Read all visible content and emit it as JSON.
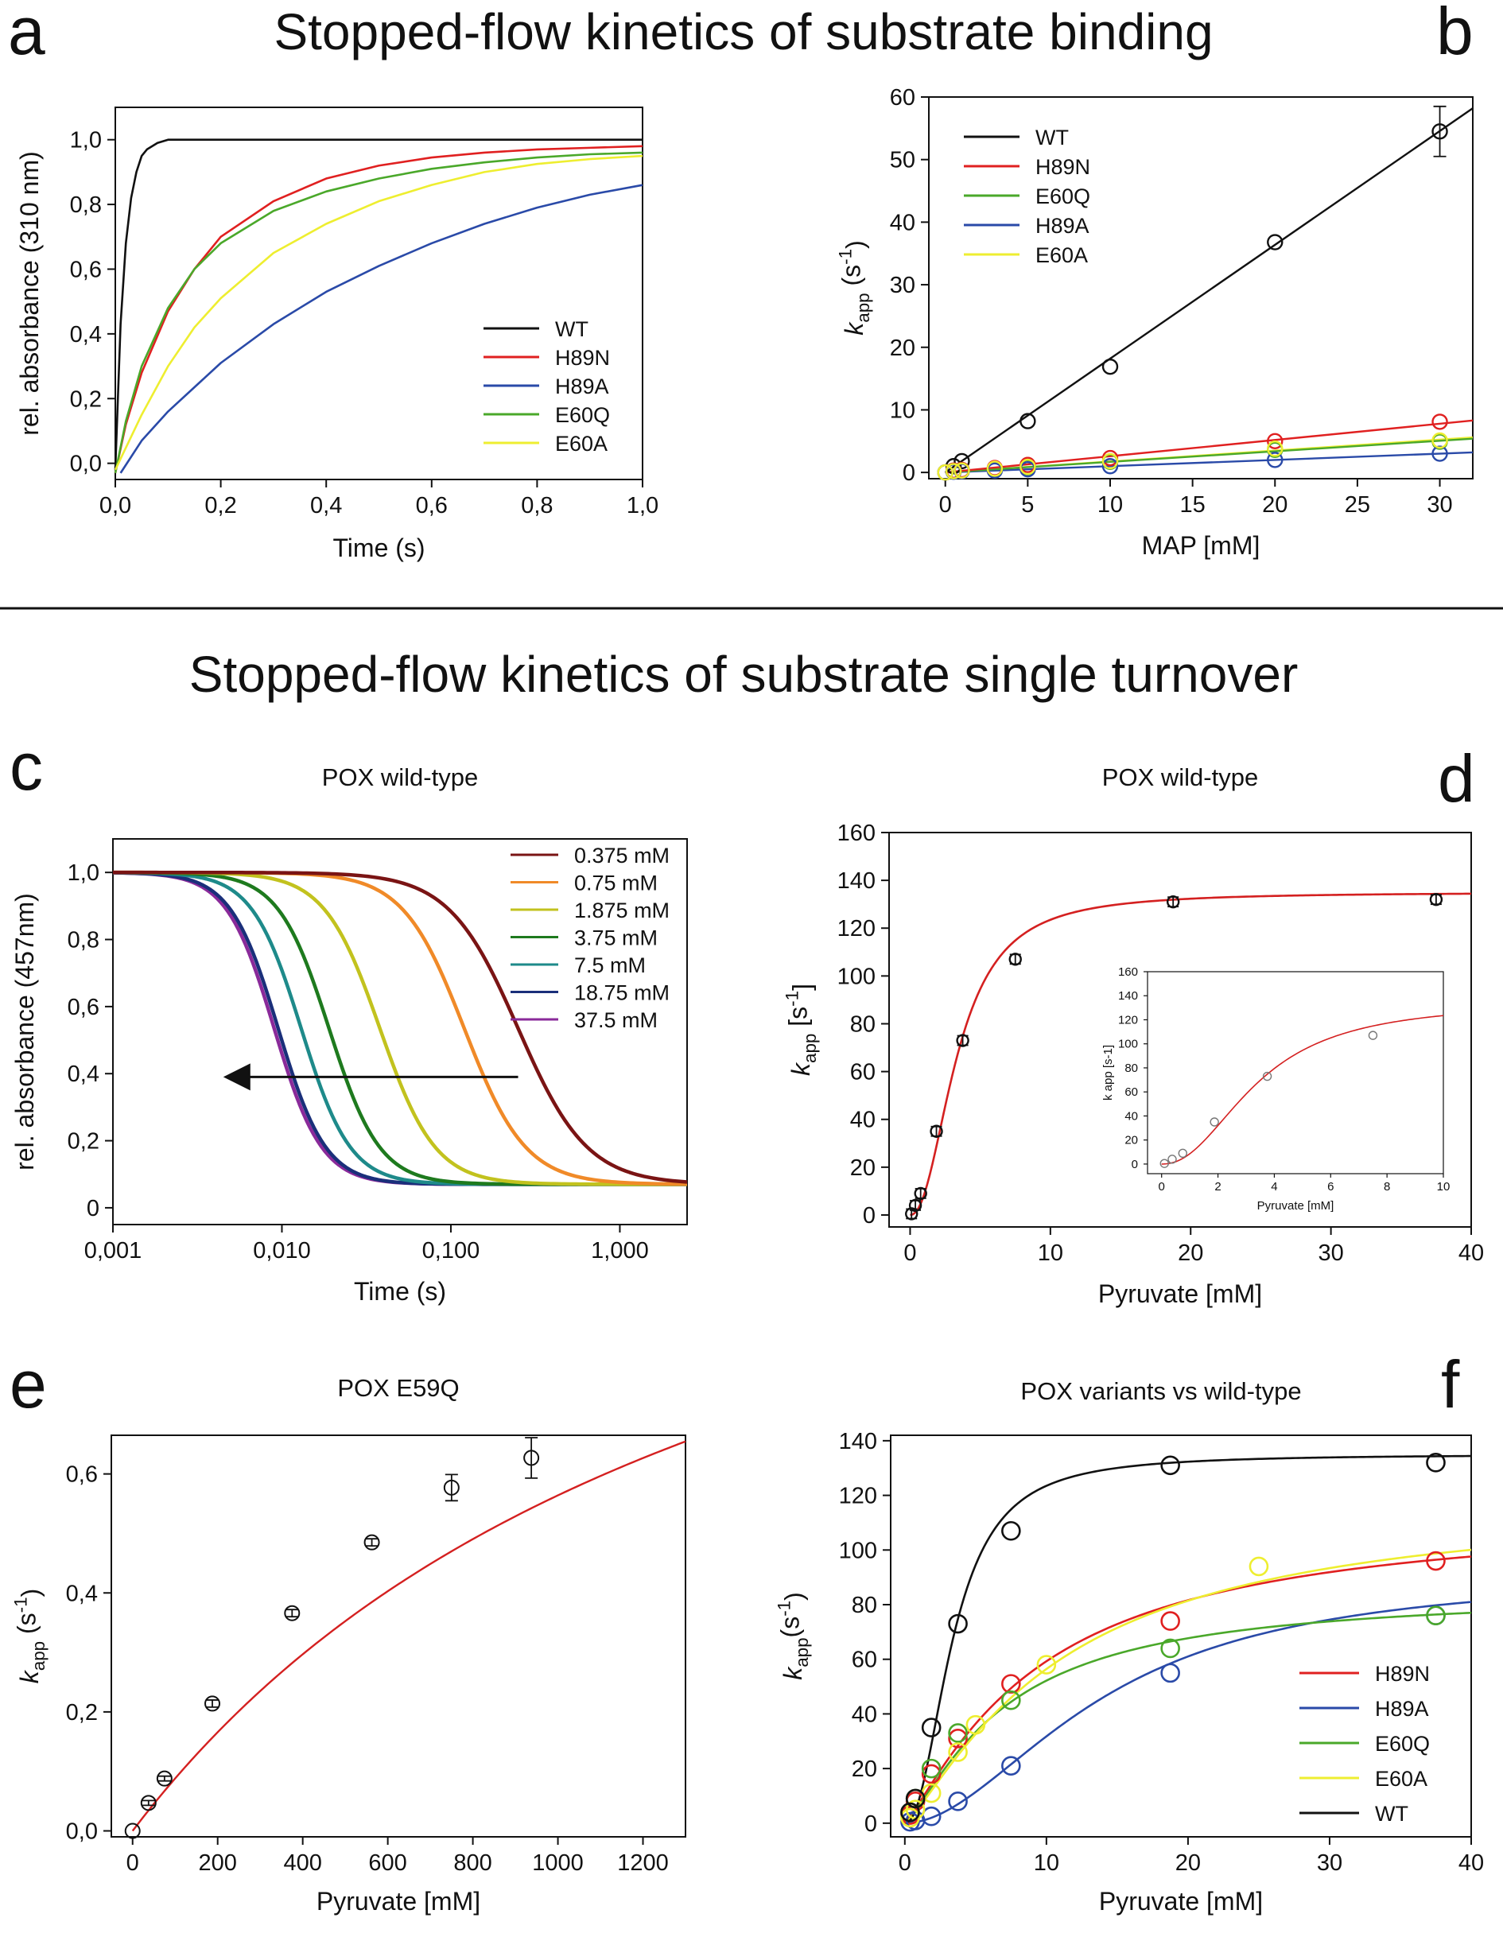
{
  "figure": {
    "section1_title": "Stopped-flow kinetics of substrate binding",
    "section2_title": "Stopped-flow kinetics of substrate single turnover",
    "panel_letters": {
      "a": "a",
      "b": "b",
      "c": "c",
      "d": "d",
      "e": "e",
      "f": "f"
    }
  },
  "chart_data": [
    {
      "panel": "a",
      "type": "line",
      "title": "",
      "xlabel": "Time (s)",
      "ylabel": "rel. absorbance (310 nm)",
      "xlim": [
        0,
        1
      ],
      "ylim": [
        -0.05,
        1.1
      ],
      "xticks": [
        0,
        0.2,
        0.4,
        0.6,
        0.8,
        1.0
      ],
      "xtick_labels": [
        "0,0",
        "0,2",
        "0,4",
        "0,6",
        "0,8",
        "1,0"
      ],
      "yticks": [
        0,
        0.2,
        0.4,
        0.6,
        0.8,
        1.0
      ],
      "ytick_labels": [
        "0,0",
        "0,2",
        "0,4",
        "0,6",
        "0,8",
        "1,0"
      ],
      "legend_position": "bottom-right",
      "series": [
        {
          "name": "WT",
          "color": "#111111",
          "x": [
            0,
            0.01,
            0.02,
            0.03,
            0.04,
            0.05,
            0.06,
            0.08,
            0.1,
            0.15,
            0.2,
            0.4,
            0.6,
            0.8,
            1.0
          ],
          "y": [
            -0.02,
            0.43,
            0.68,
            0.82,
            0.9,
            0.95,
            0.97,
            0.99,
            1.0,
            1.0,
            1.0,
            1.0,
            1.0,
            1.0,
            1.0
          ]
        },
        {
          "name": "H89N",
          "color": "#e02020",
          "x": [
            0,
            0.02,
            0.05,
            0.1,
            0.15,
            0.2,
            0.3,
            0.4,
            0.5,
            0.6,
            0.7,
            0.8,
            0.9,
            1.0
          ],
          "y": [
            -0.03,
            0.12,
            0.28,
            0.47,
            0.6,
            0.7,
            0.81,
            0.88,
            0.92,
            0.945,
            0.96,
            0.97,
            0.975,
            0.98
          ]
        },
        {
          "name": "H89A",
          "color": "#2a4aa8",
          "x": [
            0.01,
            0.05,
            0.1,
            0.2,
            0.3,
            0.4,
            0.5,
            0.6,
            0.7,
            0.8,
            0.9,
            1.0
          ],
          "y": [
            -0.03,
            0.07,
            0.16,
            0.31,
            0.43,
            0.53,
            0.61,
            0.68,
            0.74,
            0.79,
            0.83,
            0.86
          ]
        },
        {
          "name": "E60Q",
          "color": "#4aa82a",
          "x": [
            0,
            0.02,
            0.05,
            0.1,
            0.15,
            0.2,
            0.3,
            0.4,
            0.5,
            0.6,
            0.7,
            0.8,
            0.9,
            1.0
          ],
          "y": [
            -0.03,
            0.13,
            0.3,
            0.48,
            0.6,
            0.68,
            0.78,
            0.84,
            0.88,
            0.91,
            0.93,
            0.945,
            0.955,
            0.96
          ]
        },
        {
          "name": "E60A",
          "color": "#eeee30",
          "x": [
            0,
            0.05,
            0.1,
            0.15,
            0.2,
            0.3,
            0.4,
            0.5,
            0.6,
            0.7,
            0.8,
            0.9,
            1.0
          ],
          "y": [
            -0.02,
            0.15,
            0.3,
            0.42,
            0.51,
            0.65,
            0.74,
            0.81,
            0.86,
            0.9,
            0.925,
            0.94,
            0.95
          ]
        }
      ]
    },
    {
      "panel": "b",
      "type": "scatter",
      "title": "",
      "xlabel": "MAP [mM]",
      "ylabel_main": "k",
      "ylabel_sub": "app",
      "ylabel_unit_open": " (s",
      "ylabel_sup": "-1",
      "ylabel_unit_close": ")",
      "xlim": [
        -1,
        32
      ],
      "ylim": [
        -1,
        60
      ],
      "xticks": [
        0,
        5,
        10,
        15,
        20,
        25,
        30
      ],
      "xtick_labels": [
        "0",
        "5",
        "10",
        "15",
        "20",
        "25",
        "30"
      ],
      "yticks": [
        0,
        10,
        20,
        30,
        40,
        50,
        60
      ],
      "ytick_labels": [
        "0",
        "10",
        "20",
        "30",
        "40",
        "50",
        "60"
      ],
      "legend_position": "top-left",
      "series": [
        {
          "name": "WT",
          "color": "#111111",
          "x": [
            0.5,
            1,
            5,
            10,
            20,
            30
          ],
          "y": [
            1,
            1.8,
            8.2,
            16.9,
            36.8,
            54.5
          ],
          "err": [
            0,
            0,
            0,
            0,
            0,
            4
          ],
          "fit_x": [
            0,
            32
          ],
          "fit_y": [
            0,
            58.2
          ]
        },
        {
          "name": "H89N",
          "color": "#e02020",
          "x": [
            0,
            0.5,
            1,
            3,
            5,
            10,
            20,
            30
          ],
          "y": [
            0,
            0.3,
            0.4,
            0.7,
            1.2,
            2.3,
            5.0,
            8.1
          ],
          "err": [
            0,
            0,
            0,
            0,
            0,
            0,
            0,
            0
          ],
          "fit_x": [
            0,
            32
          ],
          "fit_y": [
            0,
            8.3
          ]
        },
        {
          "name": "E60Q",
          "color": "#4aa82a",
          "x": [
            0,
            0.5,
            1,
            3,
            5,
            10,
            20,
            30
          ],
          "y": [
            0,
            0.2,
            0.3,
            0.5,
            0.8,
            1.7,
            3.6,
            4.9
          ],
          "err": [
            0,
            0,
            0,
            0,
            0,
            0,
            0,
            0
          ],
          "fit_x": [
            0,
            32
          ],
          "fit_y": [
            0,
            5.4
          ]
        },
        {
          "name": "H89A",
          "color": "#2a4aa8",
          "x": [
            0,
            0.5,
            1,
            3,
            5,
            10,
            20,
            30
          ],
          "y": [
            0,
            0.1,
            0.2,
            0.3,
            0.5,
            1.0,
            2.0,
            3.0
          ],
          "err": [
            0,
            0,
            0,
            0,
            0,
            0,
            0,
            0
          ],
          "fit_x": [
            0,
            32
          ],
          "fit_y": [
            0,
            3.2
          ]
        },
        {
          "name": "E60A",
          "color": "#eeee30",
          "x": [
            0,
            0.5,
            1,
            3,
            5,
            10,
            20,
            30
          ],
          "y": [
            0,
            0.2,
            0.3,
            0.6,
            0.9,
            1.8,
            3.8,
            5.1
          ],
          "err": [
            0,
            0,
            0,
            0,
            0,
            0,
            0,
            0
          ],
          "fit_x": [
            0,
            32
          ],
          "fit_y": [
            0,
            5.6
          ]
        }
      ]
    },
    {
      "panel": "c",
      "type": "line",
      "title": "POX wild-type",
      "xscale": "log",
      "xlabel": "Time (s)",
      "ylabel": "rel. absorbance (457nm)",
      "xlim": [
        0.001,
        2.5
      ],
      "ylim": [
        -0.05,
        1.1
      ],
      "xticks": [
        0.001,
        0.01,
        0.1,
        1.0
      ],
      "xtick_labels": [
        "0,001",
        "0,010",
        "0,100",
        "1,000"
      ],
      "yticks": [
        0,
        0.2,
        0.4,
        0.6,
        0.8,
        1.0
      ],
      "ytick_labels": [
        "0",
        "0,2",
        "0,4",
        "0,6",
        "0,8",
        "1,0"
      ],
      "legend_position": "top-right",
      "arrow": {
        "from_x": 0.25,
        "to_x": 0.0045,
        "y": 0.39
      },
      "series": [
        {
          "name": "0.375 mM",
          "color": "#7a1414",
          "midpoint": 0.25,
          "width": 0.45
        },
        {
          "name": "0.75 mM",
          "color": "#f08a28",
          "midpoint": 0.12,
          "width": 0.4
        },
        {
          "name": "1.875 mM",
          "color": "#c2c21e",
          "midpoint": 0.038,
          "width": 0.36
        },
        {
          "name": "3.75 mM",
          "color": "#1e7a1e",
          "midpoint": 0.019,
          "width": 0.33
        },
        {
          "name": "7.5 mM",
          "color": "#1e8a8a",
          "midpoint": 0.013,
          "width": 0.32
        },
        {
          "name": "18.75 mM",
          "color": "#1a2f7a",
          "midpoint": 0.0095,
          "width": 0.31
        },
        {
          "name": "37.5 mM",
          "color": "#8a2a9a",
          "midpoint": 0.009,
          "width": 0.31
        }
      ]
    },
    {
      "panel": "d",
      "type": "scatter",
      "title": "POX wild-type",
      "xlabel": "Pyruvate [mM]",
      "ylabel_main": "k",
      "ylabel_sub": "app",
      "ylabel_unit_open": " [s",
      "ylabel_sup": "-1",
      "ylabel_unit_close": "]",
      "xlim": [
        -1.5,
        40
      ],
      "ylim": [
        -5,
        160
      ],
      "xticks": [
        0,
        10,
        20,
        30,
        40
      ],
      "xtick_labels": [
        "0",
        "10",
        "20",
        "30",
        "40"
      ],
      "yticks": [
        0,
        20,
        40,
        60,
        80,
        100,
        120,
        140,
        160
      ],
      "ytick_labels": [
        "0",
        "20",
        "40",
        "60",
        "80",
        "100",
        "120",
        "140",
        "160"
      ],
      "points": {
        "x": [
          0.1,
          0.375,
          0.75,
          1.875,
          3.75,
          7.5,
          18.75,
          37.5
        ],
        "y": [
          0.5,
          4,
          9,
          35,
          73,
          107,
          131,
          132
        ]
      },
      "fit": {
        "kmax": 135,
        "k05": 3.4,
        "n": 2.2,
        "color": "#d42020"
      },
      "inset": {
        "xlabel": "Pyruvate [mM]",
        "ylabel": "k app [s-1]",
        "xlim": [
          -0.5,
          10
        ],
        "ylim": [
          -8,
          160
        ],
        "xticks": [
          0,
          2,
          4,
          6,
          8,
          10
        ],
        "xtick_labels": [
          "0",
          "2",
          "4",
          "6",
          "8",
          "10"
        ],
        "yticks": [
          0,
          20,
          40,
          60,
          80,
          100,
          120,
          140,
          160
        ],
        "ytick_labels": [
          "0",
          "20",
          "40",
          "60",
          "80",
          "100",
          "120",
          "140",
          "160"
        ]
      }
    },
    {
      "panel": "e",
      "type": "scatter",
      "title": "POX E59Q",
      "xlabel": "Pyruvate [mM]",
      "ylabel_main": "k",
      "ylabel_sub": "app",
      "ylabel_unit_open": " (s",
      "ylabel_sup": "-1",
      "ylabel_unit_close": ")",
      "xlim": [
        -50,
        1300
      ],
      "ylim": [
        -0.01,
        0.665
      ],
      "xticks": [
        0,
        200,
        400,
        600,
        800,
        1000,
        1200
      ],
      "xtick_labels": [
        "0",
        "200",
        "400",
        "600",
        "800",
        "1000",
        "1200"
      ],
      "yticks": [
        0,
        0.2,
        0.4,
        0.6
      ],
      "ytick_labels": [
        "0,0",
        "0,2",
        "0,4",
        "0,6"
      ],
      "points": {
        "x": [
          0,
          37.5,
          75,
          187.5,
          375,
          562.5,
          750,
          937.5
        ],
        "y": [
          0,
          0.047,
          0.088,
          0.214,
          0.366,
          0.485,
          0.577,
          0.627
        ],
        "err": [
          0,
          0.004,
          0.004,
          0.006,
          0.006,
          0.006,
          0.022,
          0.034
        ]
      },
      "fit": {
        "vmax": 1.41,
        "km": 1500,
        "color": "#d42020"
      }
    },
    {
      "panel": "f",
      "type": "scatter",
      "title": "POX variants vs wild-type",
      "xlabel": "Pyruvate [mM]",
      "ylabel_main": "k",
      "ylabel_sub": "app",
      "ylabel_unit_open": "(s",
      "ylabel_sup": "-1",
      "ylabel_unit_close": ")",
      "xlim": [
        -1,
        40
      ],
      "ylim": [
        -5,
        142
      ],
      "xticks": [
        0,
        10,
        20,
        30,
        40
      ],
      "xtick_labels": [
        "0",
        "10",
        "20",
        "30",
        "40"
      ],
      "yticks": [
        0,
        20,
        40,
        60,
        80,
        100,
        120,
        140
      ],
      "ytick_labels": [
        "0",
        "20",
        "40",
        "60",
        "80",
        "100",
        "120",
        "140"
      ],
      "legend_position": "bottom-right",
      "series": [
        {
          "name": "H89N",
          "color": "#e02020",
          "x": [
            0.375,
            0.75,
            1.875,
            3.75,
            7.5,
            18.75,
            37.5
          ],
          "y": [
            3,
            8,
            18,
            31,
            51,
            74,
            96
          ],
          "fit": {
            "kmax": 115,
            "k05": 9.5,
            "n": 1.2
          }
        },
        {
          "name": "H89A",
          "color": "#2a4aa8",
          "x": [
            0.375,
            0.75,
            1.875,
            3.75,
            7.5,
            18.75,
            37.5
          ],
          "y": [
            0.5,
            1,
            2.5,
            8,
            21,
            55,
            76
          ],
          "fit": {
            "kmax": 92,
            "k05": 14,
            "n": 1.9
          }
        },
        {
          "name": "E60Q",
          "color": "#4aa82a",
          "x": [
            0.375,
            0.75,
            1.875,
            3.75,
            7.5,
            18.75,
            37.5
          ],
          "y": [
            4,
            9,
            20,
            33,
            45,
            64,
            76
          ],
          "fit": {
            "kmax": 85,
            "k05": 7,
            "n": 1.3
          }
        },
        {
          "name": "E60A",
          "color": "#eeee30",
          "x": [
            0.375,
            0.75,
            1.875,
            3.75,
            5,
            10,
            25
          ],
          "y": [
            2,
            5,
            11,
            26,
            36,
            58,
            94
          ],
          "fit": {
            "kmax": 120,
            "k05": 11,
            "n": 1.25
          }
        },
        {
          "name": "WT",
          "color": "#111111",
          "x": [
            0.375,
            0.75,
            1.875,
            3.75,
            7.5,
            18.75,
            37.5
          ],
          "y": [
            4,
            9,
            35,
            73,
            107,
            131,
            132
          ],
          "fit": {
            "kmax": 135,
            "k05": 3.4,
            "n": 2.2
          }
        }
      ]
    }
  ]
}
